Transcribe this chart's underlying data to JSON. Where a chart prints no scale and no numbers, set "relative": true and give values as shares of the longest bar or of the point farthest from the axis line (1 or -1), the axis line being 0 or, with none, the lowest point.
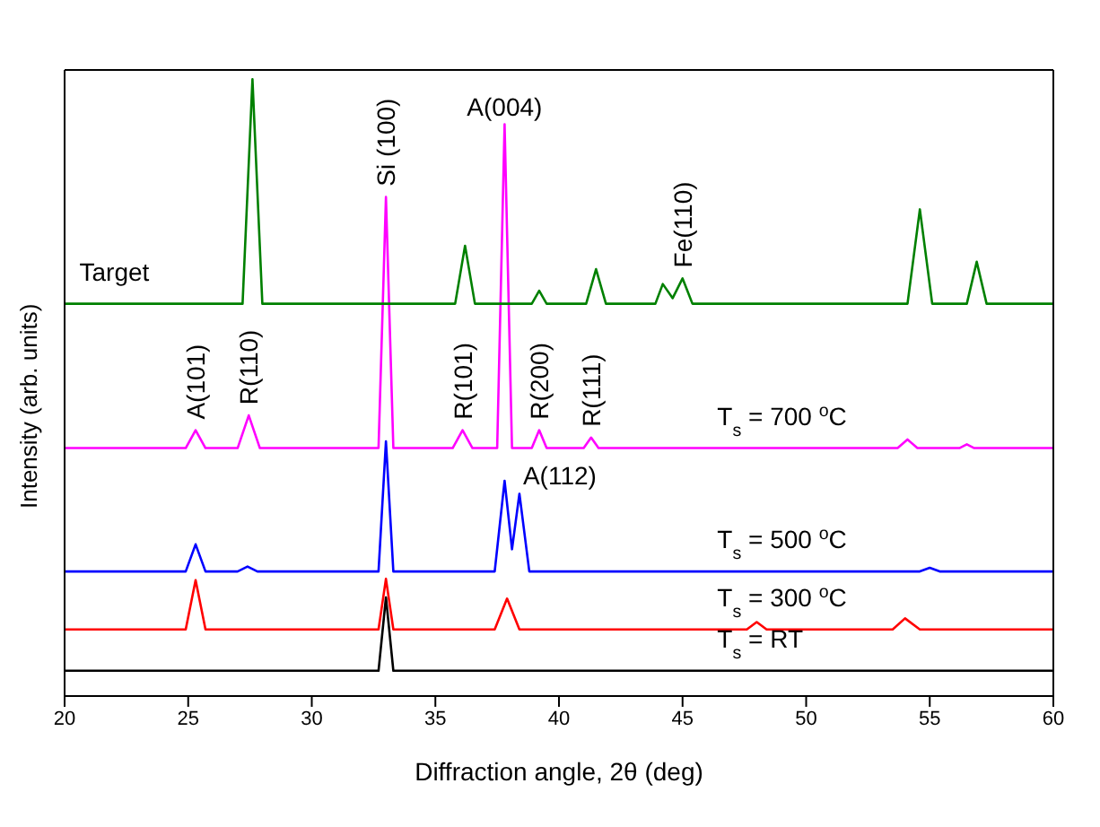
{
  "chart_data": {
    "type": "line",
    "xlabel": "Diffraction angle, 2θ (deg)",
    "ylabel": "Intensity (arb. units)",
    "relative": true,
    "xlim": [
      20,
      60
    ],
    "xticks": [
      20,
      25,
      30,
      35,
      40,
      45,
      50,
      55,
      60
    ],
    "marker": "none",
    "line_style": "solid",
    "series": [
      {
        "name": "Target",
        "color": "#008000",
        "x": [
          20,
          27.2,
          27.6,
          28.0,
          35.8,
          36.2,
          36.6,
          38.9,
          39.2,
          39.5,
          41.1,
          41.5,
          41.9,
          43.9,
          44.2,
          44.6,
          45.0,
          45.4,
          54.1,
          54.6,
          55.1,
          56.5,
          56.9,
          57.3,
          60
        ],
        "values": [
          0.636,
          0.636,
          1,
          0.636,
          0.636,
          0.73,
          0.636,
          0.636,
          0.657,
          0.636,
          0.636,
          0.692,
          0.636,
          0.636,
          0.668,
          0.645,
          0.677,
          0.636,
          0.636,
          0.789,
          0.636,
          0.636,
          0.704,
          0.636,
          0.636
        ]
      },
      {
        "name": "T$_{s}$ = 700 $^{o}$C",
        "color": "#ff00ff",
        "x": [
          20,
          24.9,
          25.3,
          25.7,
          27.0,
          27.45,
          27.9,
          32.7,
          33.0,
          33.3,
          35.7,
          36.1,
          36.5,
          37.5,
          37.8,
          38.1,
          38.9,
          39.2,
          39.5,
          41.0,
          41.3,
          41.6,
          53.7,
          54.1,
          54.5,
          56.2,
          56.5,
          56.8,
          60
        ],
        "values": [
          0.402,
          0.402,
          0.431,
          0.402,
          0.402,
          0.455,
          0.402,
          0.402,
          0.809,
          0.402,
          0.402,
          0.431,
          0.402,
          0.402,
          0.927,
          0.402,
          0.402,
          0.431,
          0.402,
          0.402,
          0.419,
          0.402,
          0.402,
          0.416,
          0.402,
          0.402,
          0.408,
          0.402,
          0.402
        ]
      },
      {
        "name": "T$_{s}$ = 500 $^{o}$C",
        "color": "#0000ff",
        "x": [
          20,
          24.9,
          25.3,
          25.7,
          27.0,
          27.4,
          27.8,
          32.7,
          33.0,
          33.3,
          37.4,
          37.8,
          38.1,
          38.4,
          38.8,
          54.6,
          55.0,
          55.4,
          60
        ],
        "values": [
          0.202,
          0.202,
          0.246,
          0.202,
          0.202,
          0.21,
          0.202,
          0.202,
          0.413,
          0.202,
          0.202,
          0.349,
          0.238,
          0.328,
          0.202,
          0.202,
          0.208,
          0.202,
          0.202
        ]
      },
      {
        "name": "T$_{s}$ = 300 $^{o}$C",
        "color": "#ff0000",
        "x": [
          20,
          24.9,
          25.3,
          25.7,
          32.7,
          33.0,
          33.3,
          37.4,
          37.9,
          38.4,
          47.6,
          48.0,
          48.4,
          53.5,
          54.0,
          54.6,
          60
        ],
        "values": [
          0.108,
          0.108,
          0.188,
          0.108,
          0.108,
          0.19,
          0.108,
          0.108,
          0.158,
          0.108,
          0.108,
          0.12,
          0.108,
          0.108,
          0.126,
          0.108,
          0.108
        ]
      },
      {
        "name": "T$_{s}$ = RT",
        "color": "#000000",
        "x": [
          20,
          32.7,
          33.0,
          33.3,
          60
        ],
        "values": [
          0.041,
          0.041,
          0.16,
          0.041,
          0.041
        ]
      }
    ],
    "annotations": [
      {
        "text": "Si (100)",
        "x": 33.0,
        "y": 0.809
      },
      {
        "text": "A(004)",
        "x": 37.8,
        "y": 0.927
      },
      {
        "text": "Fe(110)",
        "x": 45.0,
        "y": 0.677
      },
      {
        "text": "A(101)",
        "x": 25.3,
        "y": 0.431
      },
      {
        "text": "R(110)",
        "x": 27.45,
        "y": 0.455
      },
      {
        "text": "R(101)",
        "x": 36.1,
        "y": 0.431
      },
      {
        "text": "R(200)",
        "x": 39.2,
        "y": 0.431
      },
      {
        "text": "R(111)",
        "x": 41.3,
        "y": 0.419
      },
      {
        "text": "A(112)",
        "x": 38.4,
        "y": 0.328
      }
    ]
  }
}
